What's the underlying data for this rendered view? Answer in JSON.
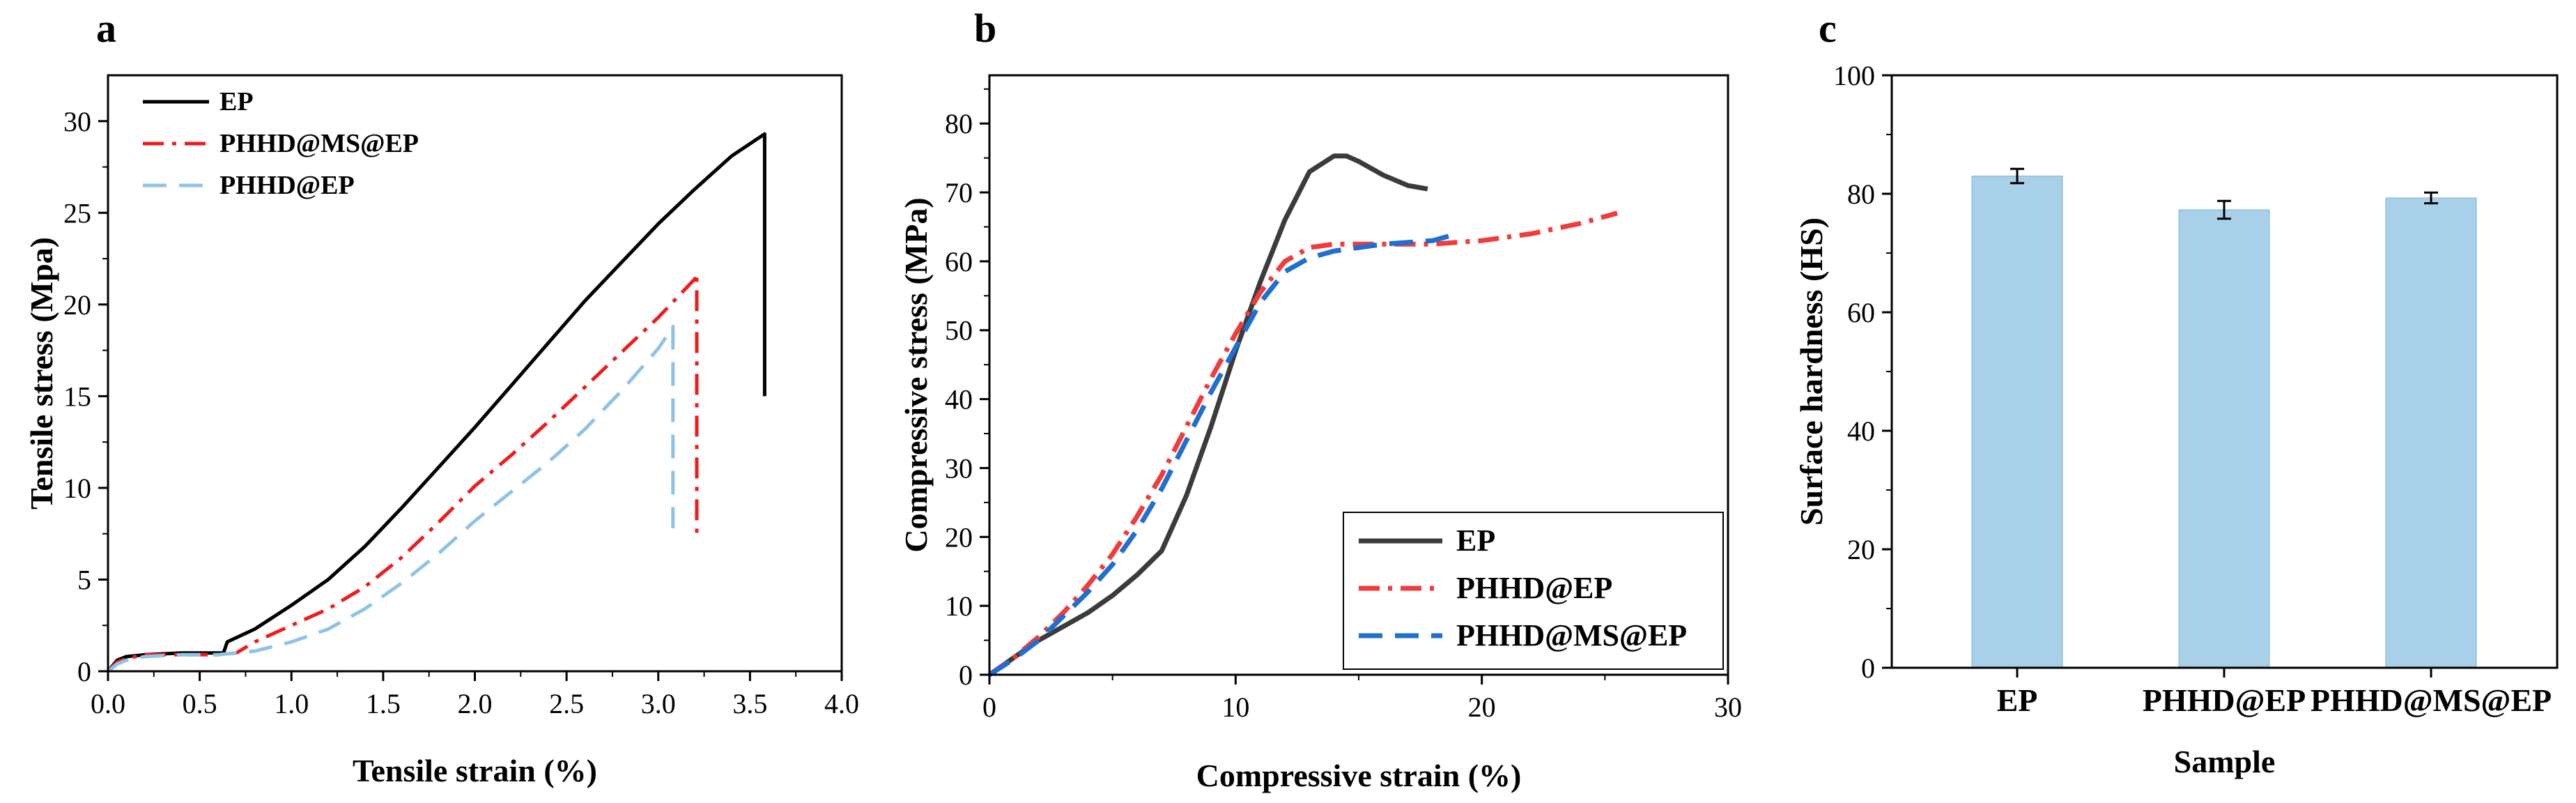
{
  "chart_data": [
    {
      "panel": "a",
      "type": "line",
      "xlabel": "Tensile strain (%)",
      "ylabel": "Tensile stress (Mpa)",
      "xlim": [
        0,
        4.0
      ],
      "ylim": [
        0,
        32.5
      ],
      "xticks": [
        0.0,
        0.5,
        1.0,
        1.5,
        2.0,
        2.5,
        3.0,
        3.5,
        4.0
      ],
      "xtick_labels": [
        "0.0",
        "0.5",
        "1.0",
        "1.5",
        "2.0",
        "2.5",
        "3.0",
        "3.5",
        "4.0"
      ],
      "yticks": [
        0,
        5,
        10,
        15,
        20,
        25,
        30
      ],
      "ytick_labels": [
        "0",
        "5",
        "10",
        "15",
        "20",
        "25",
        "30"
      ],
      "legend_position": "top-left",
      "series": [
        {
          "name": "EP",
          "color": "#000000",
          "dash": "solid",
          "x": [
            0,
            0.05,
            0.1,
            0.2,
            0.4,
            0.6,
            0.63,
            0.65,
            0.8,
            1.0,
            1.2,
            1.4,
            1.6,
            1.8,
            2.0,
            2.2,
            2.4,
            2.6,
            2.8,
            3.0,
            3.2,
            3.4,
            3.58,
            3.58
          ],
          "y": [
            0,
            0.6,
            0.8,
            0.9,
            1.0,
            1.0,
            1.0,
            1.6,
            2.3,
            3.6,
            5.0,
            6.8,
            8.9,
            11.1,
            13.3,
            15.6,
            17.9,
            20.2,
            22.3,
            24.4,
            26.3,
            28.1,
            29.3,
            15.0
          ]
        },
        {
          "name": "PHHD@MS@EP",
          "color": "#ee1c1c",
          "dash": "dashdot",
          "x": [
            0,
            0.05,
            0.1,
            0.2,
            0.4,
            0.6,
            0.7,
            0.8,
            1.0,
            1.2,
            1.4,
            1.6,
            1.8,
            2.0,
            2.2,
            2.4,
            2.6,
            2.8,
            3.0,
            3.2,
            3.21,
            3.21
          ],
          "y": [
            0,
            0.5,
            0.7,
            0.9,
            0.9,
            0.9,
            1.0,
            1.6,
            2.5,
            3.4,
            4.6,
            6.2,
            8.1,
            10.1,
            11.8,
            13.6,
            15.5,
            17.4,
            19.3,
            21.4,
            21.7,
            7.5
          ]
        },
        {
          "name": "PHHD@EP",
          "color": "#8fc3e6",
          "dash": "dashed",
          "x": [
            0,
            0.05,
            0.1,
            0.2,
            0.4,
            0.6,
            0.8,
            1.0,
            1.2,
            1.4,
            1.6,
            1.8,
            2.0,
            2.2,
            2.4,
            2.6,
            2.8,
            3.0,
            3.08,
            3.08
          ],
          "y": [
            0,
            0.4,
            0.6,
            0.8,
            0.9,
            0.9,
            1.1,
            1.6,
            2.3,
            3.4,
            4.8,
            6.4,
            8.2,
            9.8,
            11.4,
            13.2,
            15.3,
            17.6,
            18.8,
            7.8
          ]
        }
      ]
    },
    {
      "panel": "b",
      "type": "line",
      "xlabel": "Compressive strain (%)",
      "ylabel": "Compressive stress (MPa)",
      "xlim": [
        0,
        30
      ],
      "ylim": [
        0,
        87
      ],
      "xticks": [
        0,
        10,
        20,
        30
      ],
      "xtick_labels": [
        "0",
        "10",
        "20",
        "30"
      ],
      "yticks": [
        0,
        10,
        20,
        30,
        40,
        50,
        60,
        70,
        80
      ],
      "ytick_labels": [
        "0",
        "10",
        "20",
        "30",
        "40",
        "50",
        "60",
        "70",
        "80"
      ],
      "legend_position": "bottom-right",
      "series": [
        {
          "name": "EP",
          "color": "#3b3b3b",
          "dash": "solid",
          "x": [
            0,
            1,
            2,
            3,
            4,
            5,
            6,
            7,
            8,
            9,
            10,
            11,
            12,
            13,
            14,
            14.5,
            15,
            16,
            17,
            17.8
          ],
          "y": [
            0,
            2.5,
            5,
            7,
            9,
            11.5,
            14.5,
            18,
            26,
            36,
            47,
            57,
            66,
            73,
            75.3,
            75.3,
            74.5,
            72.5,
            71,
            70.5
          ]
        },
        {
          "name": "PHHD@EP",
          "color": "#f03c3c",
          "dash": "dashdot",
          "x": [
            0,
            1,
            2,
            3,
            4,
            5,
            6,
            7,
            8,
            9,
            10,
            11,
            12,
            13,
            14,
            16,
            18,
            20,
            22,
            24,
            25.5
          ],
          "y": [
            0,
            2.5,
            5.5,
            9,
            13,
            17.5,
            23,
            29,
            36,
            43,
            49.5,
            55.5,
            60,
            62,
            62.5,
            62.5,
            62.5,
            63,
            64,
            65.5,
            67
          ]
        },
        {
          "name": "PHHD@MS@EP",
          "color": "#1f6fd1",
          "dash": "dashed",
          "x": [
            0,
            1,
            2,
            3,
            4,
            5,
            6,
            7,
            8,
            9,
            10,
            11,
            12,
            13,
            14,
            16,
            18,
            19
          ],
          "y": [
            0,
            2.3,
            5,
            8.5,
            12,
            16,
            21,
            27,
            34,
            41,
            47.5,
            54,
            58.5,
            60.5,
            61.5,
            62.5,
            63,
            64
          ]
        }
      ]
    },
    {
      "panel": "c",
      "type": "bar",
      "xlabel": "Sample",
      "ylabel": "Surface hardness (HS)",
      "ylim": [
        0,
        100
      ],
      "yticks": [
        0,
        20,
        40,
        60,
        80,
        100
      ],
      "ytick_labels": [
        "0",
        "20",
        "40",
        "60",
        "80",
        "100"
      ],
      "categories": [
        "EP",
        "PHHD@EP",
        "PHHD@MS@EP"
      ],
      "values": [
        83,
        77.3,
        79.3
      ],
      "errors": [
        1.2,
        1.5,
        0.9
      ],
      "bar_color": "#a8d0e9"
    }
  ],
  "figure": {
    "panel_a": {
      "letter": "a"
    },
    "panel_b": {
      "letter": "b"
    },
    "panel_c": {
      "letter": "c"
    }
  }
}
